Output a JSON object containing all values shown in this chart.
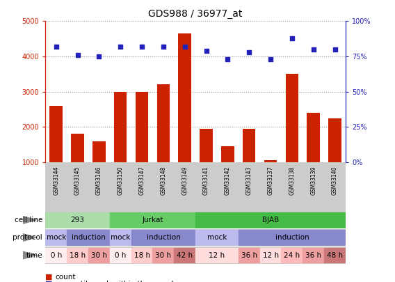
{
  "title": "GDS988 / 36977_at",
  "samples": [
    "GSM33144",
    "GSM33145",
    "GSM33146",
    "GSM33150",
    "GSM33147",
    "GSM33148",
    "GSM33149",
    "GSM33141",
    "GSM33142",
    "GSM33143",
    "GSM33137",
    "GSM33138",
    "GSM33139",
    "GSM33140"
  ],
  "counts": [
    2600,
    1800,
    1600,
    3000,
    3000,
    3200,
    4650,
    1950,
    1450,
    1950,
    1050,
    3500,
    2400,
    2250
  ],
  "percentiles": [
    82,
    76,
    75,
    82,
    82,
    82,
    82,
    79,
    73,
    78,
    73,
    88,
    80,
    80
  ],
  "bar_color": "#CC2200",
  "dot_color": "#2222BB",
  "ylim_left": [
    1000,
    5000
  ],
  "ylim_right": [
    0,
    100
  ],
  "yticks_left": [
    1000,
    2000,
    3000,
    4000,
    5000
  ],
  "yticks_right": [
    0,
    25,
    50,
    75,
    100
  ],
  "cell_line_data": [
    {
      "label": "293",
      "start": 0,
      "end": 3,
      "color": "#AADDAA"
    },
    {
      "label": "Jurkat",
      "start": 3,
      "end": 7,
      "color": "#66CC66"
    },
    {
      "label": "BJAB",
      "start": 7,
      "end": 14,
      "color": "#44BB44"
    }
  ],
  "protocol_data": [
    {
      "label": "mock",
      "start": 0,
      "end": 1,
      "color": "#BBBBEE"
    },
    {
      "label": "induction",
      "start": 1,
      "end": 3,
      "color": "#8888CC"
    },
    {
      "label": "mock",
      "start": 3,
      "end": 4,
      "color": "#BBBBEE"
    },
    {
      "label": "induction",
      "start": 4,
      "end": 7,
      "color": "#8888CC"
    },
    {
      "label": "mock",
      "start": 7,
      "end": 9,
      "color": "#BBBBEE"
    },
    {
      "label": "induction",
      "start": 9,
      "end": 14,
      "color": "#8888CC"
    }
  ],
  "time_data": [
    {
      "label": "0 h",
      "start": 0,
      "end": 1,
      "color": "#FFEEEE"
    },
    {
      "label": "18 h",
      "start": 1,
      "end": 2,
      "color": "#FFCCCC"
    },
    {
      "label": "30 h",
      "start": 2,
      "end": 3,
      "color": "#EEA0A0"
    },
    {
      "label": "0 h",
      "start": 3,
      "end": 4,
      "color": "#FFEEEE"
    },
    {
      "label": "18 h",
      "start": 4,
      "end": 5,
      "color": "#FFCCCC"
    },
    {
      "label": "30 h",
      "start": 5,
      "end": 6,
      "color": "#EEA0A0"
    },
    {
      "label": "42 h",
      "start": 6,
      "end": 7,
      "color": "#CC7777"
    },
    {
      "label": "12 h",
      "start": 7,
      "end": 9,
      "color": "#FFDDDD"
    },
    {
      "label": "36 h",
      "start": 9,
      "end": 10,
      "color": "#EEA0A0"
    },
    {
      "label": "12 h",
      "start": 10,
      "end": 11,
      "color": "#FFDDDD"
    },
    {
      "label": "24 h",
      "start": 11,
      "end": 12,
      "color": "#FFBBBB"
    },
    {
      "label": "36 h",
      "start": 12,
      "end": 13,
      "color": "#EEA0A0"
    },
    {
      "label": "48 h",
      "start": 13,
      "end": 14,
      "color": "#CC7777"
    }
  ],
  "left_axis_color": "#CC2200",
  "right_axis_color": "#2222BB",
  "grid_color": "#999999",
  "bg_color": "#FFFFFF",
  "tick_area_color": "#CCCCCC",
  "label_fontsize": 7.5,
  "title_fontsize": 10,
  "legend_fontsize": 7.5,
  "sample_fontsize": 5.5
}
